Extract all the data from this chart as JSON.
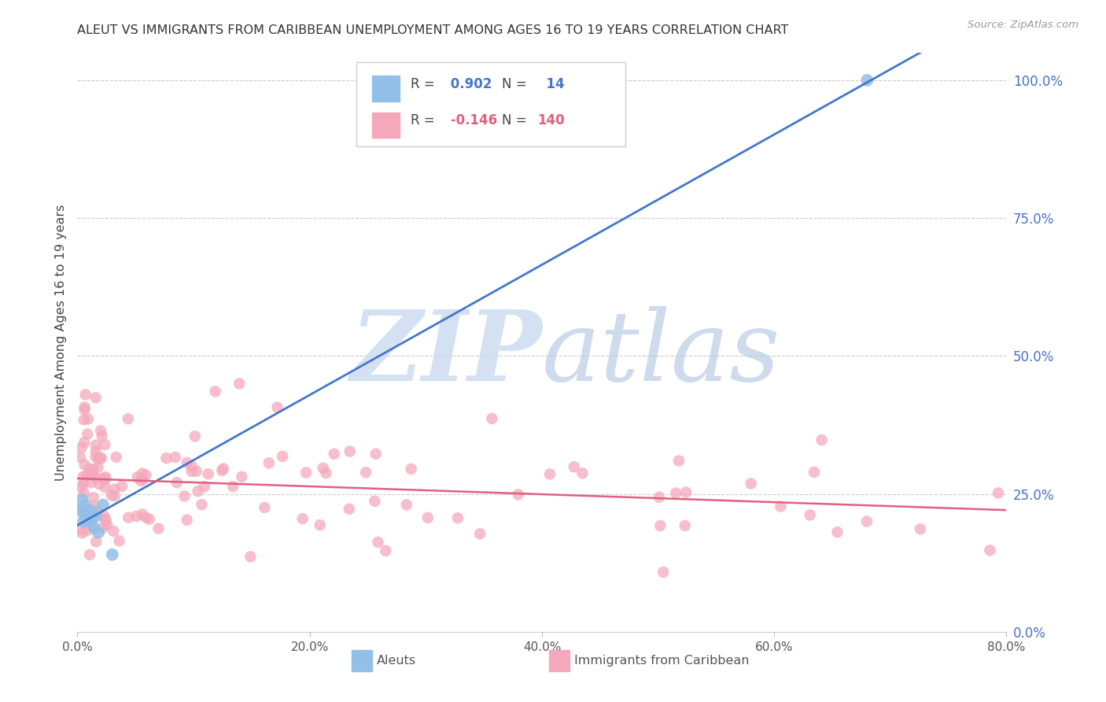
{
  "title": "ALEUT VS IMMIGRANTS FROM CARIBBEAN UNEMPLOYMENT AMONG AGES 16 TO 19 YEARS CORRELATION CHART",
  "source": "Source: ZipAtlas.com",
  "ylabel": "Unemployment Among Ages 16 to 19 years",
  "xlabel_ticks": [
    "0.0%",
    "20.0%",
    "40.0%",
    "60.0%",
    "80.0%"
  ],
  "xlabel_vals": [
    0.0,
    0.2,
    0.4,
    0.6,
    0.8
  ],
  "ylabel_ticks": [
    "100.0%",
    "75.0%",
    "50.0%",
    "25.0%",
    "0.0%"
  ],
  "ylabel_vals": [
    1.0,
    0.75,
    0.5,
    0.25,
    0.0
  ],
  "xmin": 0.0,
  "xmax": 0.8,
  "ymin": 0.0,
  "ymax": 1.05,
  "aleut_R": 0.902,
  "aleut_N": 14,
  "carib_R": -0.146,
  "carib_N": 140,
  "aleut_color": "#92c0e8",
  "carib_color": "#f5a8bc",
  "aleut_line_color": "#4477cc",
  "carib_line_color": "#e06080",
  "title_color": "#333333",
  "axis_label_color": "#444444",
  "right_axis_color": "#4472c4",
  "source_color": "#999999",
  "grid_color": "#cccccc",
  "watermark_zip_color": "#c8d8f0",
  "watermark_atlas_color": "#b8c8e0",
  "legend_border_color": "#cccccc",
  "bottom_legend_label_color": "#555555"
}
